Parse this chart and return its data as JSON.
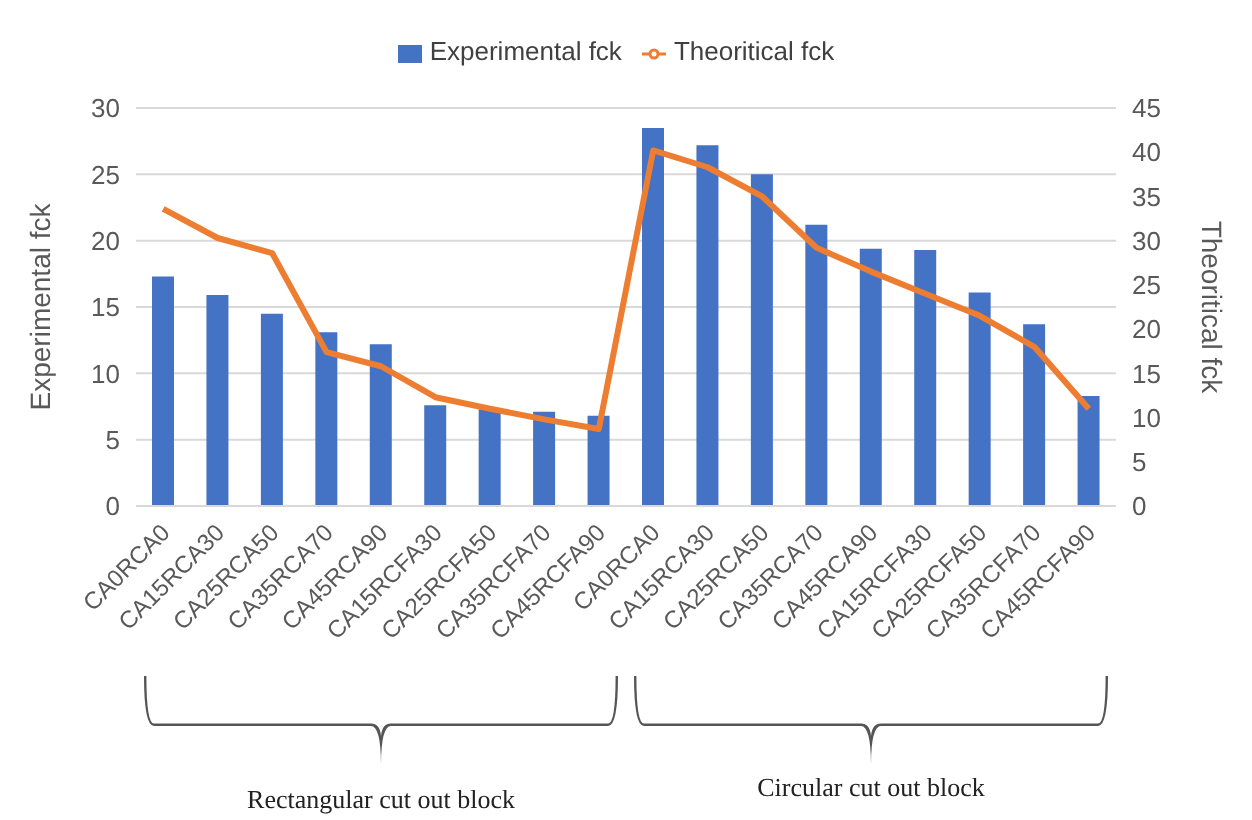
{
  "chart_data": {
    "type": "bar",
    "ylabel": "Experimental fck",
    "y2label": "Theoritical fck",
    "categories": [
      "CA0RCA0",
      "CA15RCA30",
      "CA25RCA50",
      "CA35RCA70",
      "CA45RCA90",
      "CA15RCFA30",
      "CA25RCFA50",
      "CA35RCFA70",
      "CA45RCFA90",
      "CA0RCA0",
      "CA15RCA30",
      "CA25RCA50",
      "CA35RCA70",
      "CA45RCA90",
      "CA15RCFA30",
      "CA25RCFA50",
      "CA35RCFA70",
      "CA45RCFA90"
    ],
    "series": [
      {
        "name": "Experimental fck",
        "color": "#4472c4",
        "values": [
          17.3,
          15.9,
          14.5,
          13.1,
          12.2,
          7.6,
          7.3,
          7.1,
          6.8,
          28.5,
          27.2,
          25.0,
          21.2,
          19.4,
          19.3,
          16.1,
          13.7,
          8.3
        ]
      },
      {
        "name": "Theoritical fck",
        "type": "line",
        "axis": "y2",
        "color": "#ed7d31",
        "values": [
          33.6,
          30.3,
          28.6,
          17.4,
          15.8,
          12.3,
          11.0,
          9.8,
          8.7,
          40.2,
          38.3,
          35.0,
          29.2,
          26.5,
          24.0,
          21.5,
          18.0,
          11.0
        ]
      }
    ],
    "ylim": [
      0,
      30
    ],
    "yticks": [
      0,
      5,
      10,
      15,
      20,
      25,
      30
    ],
    "y2lim": [
      0,
      45
    ],
    "y2ticks": [
      0,
      5,
      10,
      15,
      20,
      25,
      30,
      35,
      40,
      45
    ],
    "grid": "y",
    "legend": "top",
    "annotations": [
      "Rectangular cut out block",
      "Circular cut out block"
    ]
  }
}
